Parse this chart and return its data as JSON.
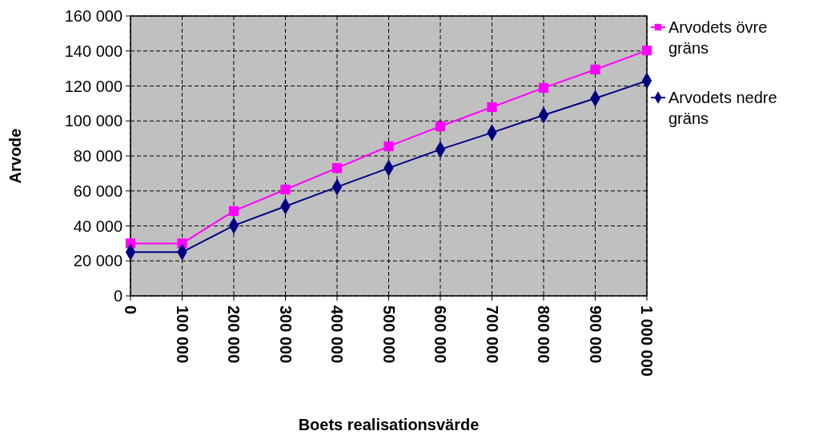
{
  "chart_data": {
    "type": "line",
    "xlabel": "Boets realisationsvärde",
    "ylabel": "Arvode",
    "categories": [
      "0",
      "100 000",
      "200 000",
      "300 000",
      "400 000",
      "500 000",
      "600 000",
      "700 000",
      "800 000",
      "900 000",
      "1 000 000"
    ],
    "series": [
      {
        "name": "Arvodets övre gräns",
        "color": "#ff00ff",
        "marker": "square",
        "values": [
          30000,
          30000,
          48500,
          60800,
          73100,
          85500,
          96900,
          107900,
          118900,
          129400,
          140300
        ]
      },
      {
        "name": "Arvodets nedre gräns",
        "color": "#000080",
        "marker": "diamond",
        "values": [
          25000,
          25000,
          40200,
          51200,
          62200,
          73100,
          83700,
          93300,
          103300,
          112900,
          123000
        ]
      }
    ],
    "ylim": [
      0,
      160000
    ],
    "yticks": [
      0,
      {
        "value": 20000,
        "label": "20 000"
      },
      {
        "value": 40000,
        "label": "40 000"
      },
      {
        "value": 60000,
        "label": "60 000"
      },
      {
        "value": 80000,
        "label": "80 000"
      },
      {
        "value": 100000,
        "label": "100 000"
      },
      {
        "value": 120000,
        "label": "120 000"
      },
      {
        "value": 140000,
        "label": "140 000"
      },
      {
        "value": 160000,
        "label": "160 000"
      }
    ],
    "grid": true,
    "legend": "right",
    "line_style": "solid"
  }
}
